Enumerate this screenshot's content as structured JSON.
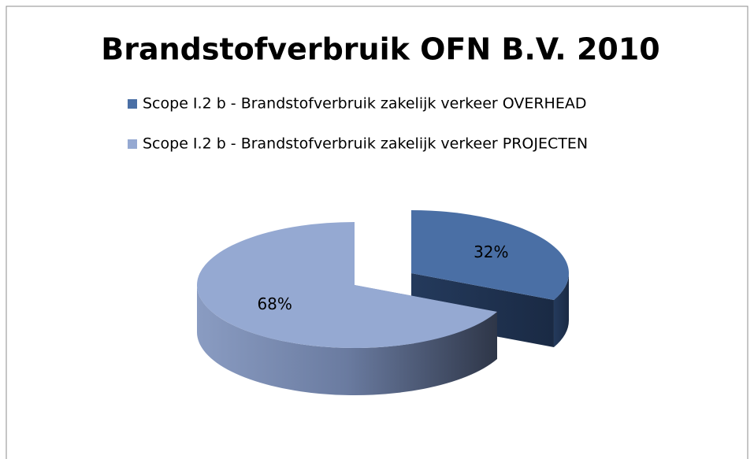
{
  "chart_data": {
    "type": "pie",
    "title": "Brandstofverbruik OFN B.V. 2010",
    "categories": [
      "Scope I.2 b - Brandstofverbruik zakelijk verkeer OVERHEAD",
      "Scope I.2 b - Brandstofverbruik zakelijk verkeer PROJECTEN"
    ],
    "values": [
      32,
      68
    ],
    "value_labels": [
      "32%",
      "68%"
    ],
    "colors": [
      "#4a6fa5",
      "#95a9d2"
    ],
    "legend": "top"
  }
}
